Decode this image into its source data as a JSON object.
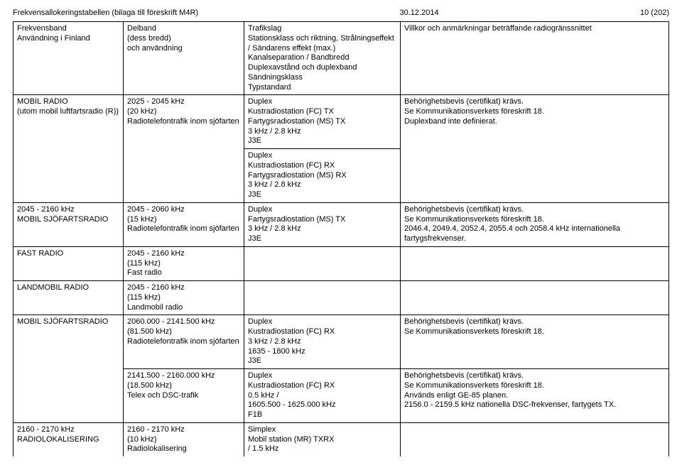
{
  "header": {
    "left": "Frekvensallokeringstabellen (bilaga till föreskrift M4R)",
    "mid": "30.12.2014",
    "right": "10 (202)"
  },
  "columns": {
    "c1": [
      "Frekvensband",
      "Användning i Finland"
    ],
    "c2": [
      "Delband",
      "(dess bredd)",
      "och användning"
    ],
    "c3": [
      "Trafikslag",
      "Stationsklass och riktning, Strålningseffekt / Sändarens effekt (max.)",
      "Kanalseparation / Bandbredd",
      "Duplexavstånd och duplexband",
      "Sändningsklass",
      "Typstandard"
    ],
    "c4": [
      "Villkor och anmärkningar beträffande radiogränssnittet"
    ]
  },
  "rows": [
    {
      "c1": [
        "MOBIL RADIO",
        "(utom mobil luftfartsradio (R))"
      ],
      "c2": [
        "2025 - 2045 kHz",
        "(20 kHz)",
        "Radiotelefontrafik inom sjöfarten"
      ],
      "c3": [
        "Duplex",
        "Kustradiostation (FC) TX",
        "Fartygsradiostation (MS) TX",
        "3 kHz / 2.8 kHz",
        "J3E"
      ],
      "c4": [
        "Behörighetsbevis (certifikat) krävs.",
        "Se Kommunikationsverkets föreskrift 18.",
        "Duplexband inte definierat."
      ],
      "top": true
    },
    {
      "c1": [],
      "c2": [],
      "c3": [
        "Duplex",
        "Kustradiostation (FC) RX",
        "Fartygsradiostation (MS) RX",
        "3 kHz / 2.8 kHz",
        "J3E"
      ],
      "c4": [],
      "contCols": [
        0,
        1,
        3
      ]
    },
    {
      "c1": [
        "2045 - 2160 kHz",
        "MOBIL SJÖFARTSRADIO"
      ],
      "c2": [
        "2045 - 2060 kHz",
        "(15 kHz)",
        "Radiotelefontrafik inom sjöfarten"
      ],
      "c3": [
        "Duplex",
        "Fartygsradiostation (MS) TX",
        "3 kHz / 2.8 kHz",
        "J3E"
      ],
      "c4": [
        "Behörighetsbevis (certifikat) krävs.",
        "Se Kommunikationsverkets föreskrift 18.",
        "2046.4, 2049.4, 2052.4, 2055.4 och 2058.4 kHz internationella fartygsfrekvenser."
      ],
      "top": true
    },
    {
      "c1": [
        "FAST RADIO"
      ],
      "c2": [
        "2045 - 2160 kHz",
        "(115 kHz)",
        "Fast radio"
      ],
      "c3": [],
      "c4": [],
      "top": true
    },
    {
      "c1": [
        "LANDMOBIL RADIO"
      ],
      "c2": [
        "2045 - 2160 kHz",
        "(115 kHz)",
        "Landmobil radio"
      ],
      "c3": [],
      "c4": [],
      "top": true
    },
    {
      "c1": [
        "MOBIL SJÖFARTSRADIO"
      ],
      "c2": [
        "2060.000 - 2141.500 kHz",
        "(81.500 kHz)",
        "Radiotelefontrafik inom sjöfarten"
      ],
      "c3": [
        "Duplex",
        "Kustradiostation (FC) RX",
        "3 kHz / 2.8 kHz",
        "1635 - 1800 kHz",
        "J3E"
      ],
      "c4": [
        "Behörighetsbevis (certifikat) krävs.",
        "Se Kommunikationsverkets föreskrift 18."
      ],
      "top": true
    },
    {
      "c1": [],
      "c2": [
        "2141.500 - 2160.000 kHz",
        "(18.500 kHz)",
        "Telex och DSC-trafik"
      ],
      "c3": [
        "Duplex",
        "Kustradiostation (FC) RX",
        "0.5 kHz /",
        "1605.500 - 1625.000 kHz",
        "F1B"
      ],
      "c4": [
        "Behörighetsbevis (certifikat) krävs.",
        "Se Kommunikationsverkets föreskrift 18.",
        "Används enligt GE-85 planen.",
        "2156.0 - 2159.5 kHz nationella DSC-frekvenser, fartygets TX."
      ],
      "contCols": [
        0
      ]
    },
    {
      "c1": [
        "2160 - 2170 kHz",
        "RADIOLOKALISERING"
      ],
      "c2": [
        "2160 - 2170 kHz",
        "(10 kHz)",
        "Radiolokalisering"
      ],
      "c3": [
        "Simplex",
        "Mobil station (MR) TXRX",
        " / 1.5 kHz"
      ],
      "c4": [],
      "top": true,
      "openBottom": true
    }
  ]
}
